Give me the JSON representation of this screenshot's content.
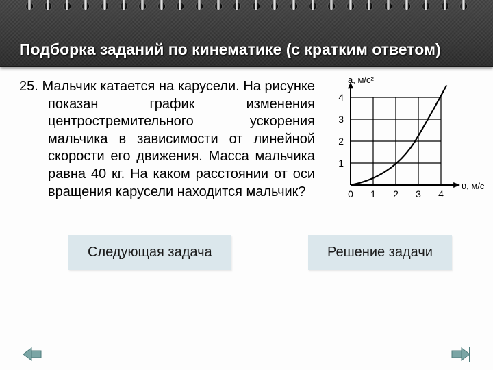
{
  "header": {
    "title": "Подборка заданий по кинематике (с кратким ответом)"
  },
  "problem": {
    "number": "25.",
    "text": "Мальчик катается на карусели. На рисунке показан график изменения центростремительного ускорения мальчика в зависимости от линейной скорости его движения. Масса мальчика равна 40 кг. На каком расстоянии от оси вращения карусели находится мальчик?"
  },
  "chart": {
    "type": "line",
    "y_axis_label": "a, м/с²",
    "x_axis_label": "υ, м/с",
    "xlim": [
      0,
      4.6
    ],
    "ylim": [
      0,
      4.6
    ],
    "xticks": [
      0,
      1,
      2,
      3,
      4
    ],
    "yticks": [
      1,
      2,
      3,
      4
    ],
    "grid_color": "#000000",
    "curve_color": "#000000",
    "background_color": "#ffffff",
    "line_width": 2.2,
    "axis_fontsize": 14,
    "label_fontsize": 13,
    "points": [
      {
        "x": 0.0,
        "y": 0.0
      },
      {
        "x": 1.0,
        "y": 0.25
      },
      {
        "x": 2.0,
        "y": 1.0
      },
      {
        "x": 3.0,
        "y": 2.25
      },
      {
        "x": 4.0,
        "y": 4.0
      },
      {
        "x": 4.3,
        "y": 4.6
      }
    ]
  },
  "buttons": {
    "next": "Следующая задача",
    "solve": "Решение задачи"
  },
  "nav": {
    "prev_color": "#7aa5a5",
    "next_color": "#7aa5a5"
  }
}
